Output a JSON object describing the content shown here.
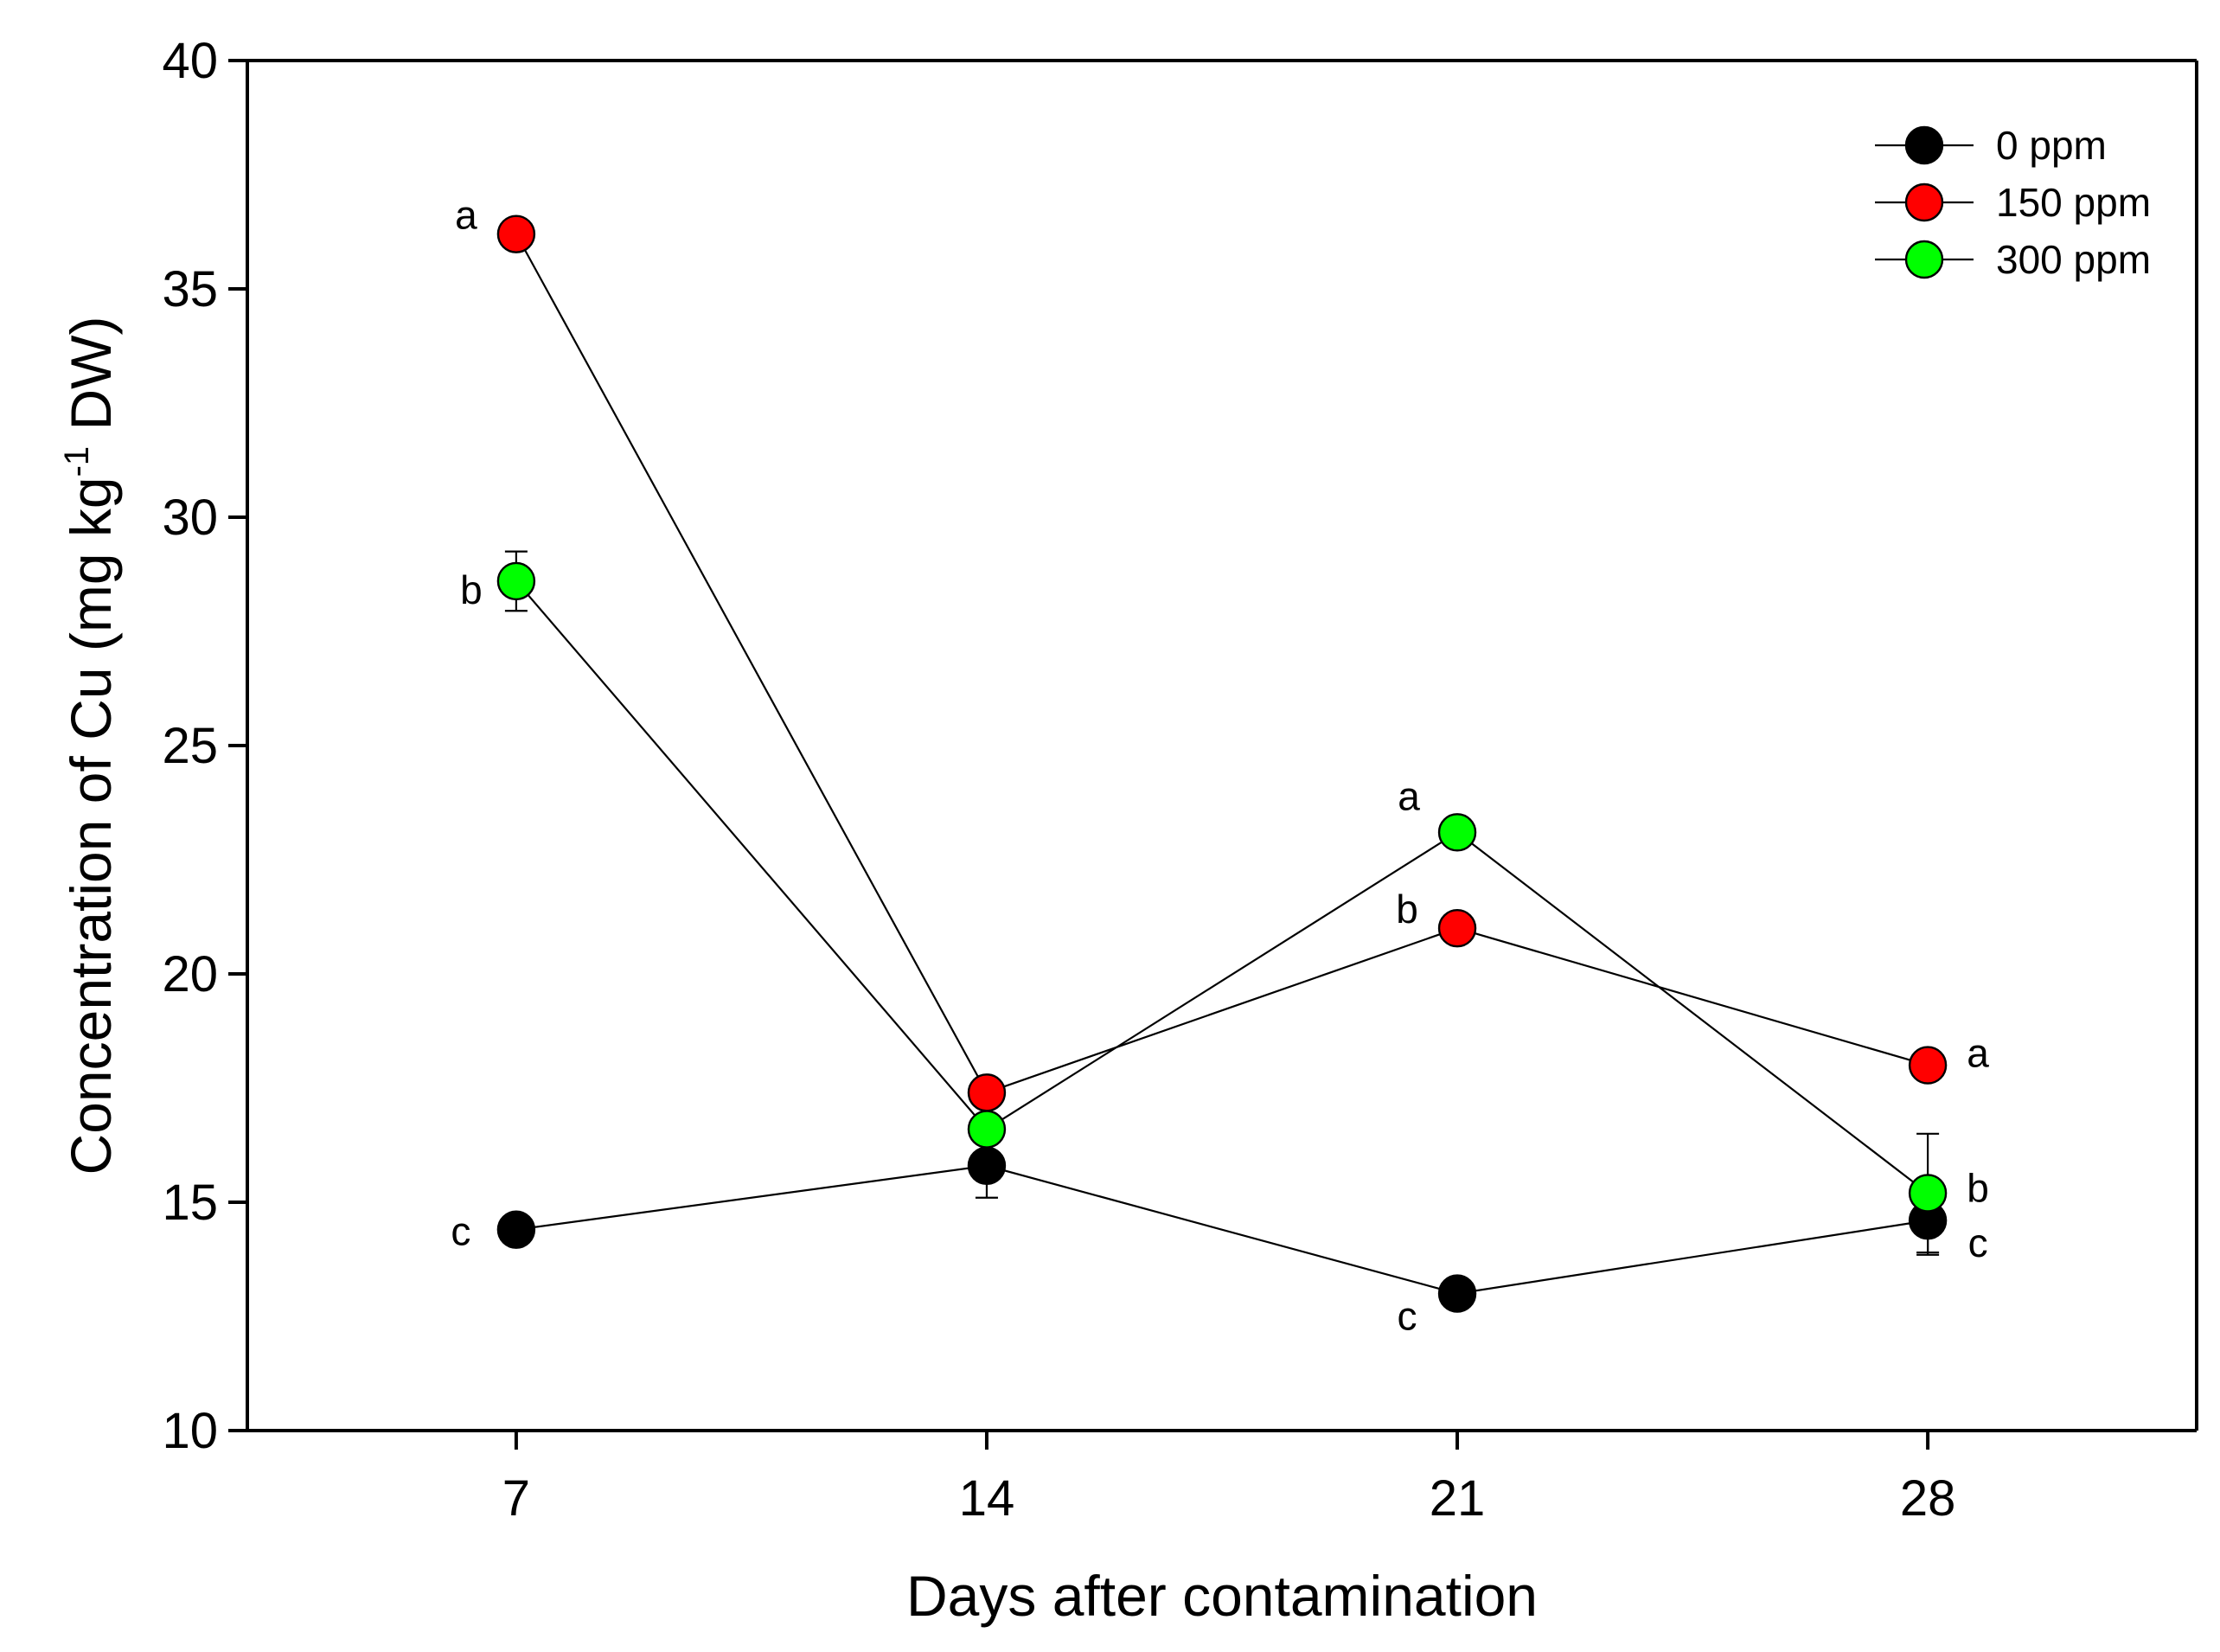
{
  "chart_data": {
    "type": "line",
    "title": "",
    "xlabel": "Days after contamination",
    "ylabel": {
      "main": "Concentration of Cu (mg kg",
      "superscript": "-1",
      "suffix": " DW)"
    },
    "x": [
      7,
      14,
      21,
      28
    ],
    "x_tick_labels": [
      "7",
      "14",
      "21",
      "28"
    ],
    "xlim": [
      3,
      32
    ],
    "ylim": [
      10,
      40
    ],
    "y_ticks": [
      10,
      15,
      20,
      25,
      30,
      35,
      40
    ],
    "y_tick_labels": [
      "10",
      "15",
      "20",
      "25",
      "30",
      "35",
      "40"
    ],
    "grid": false,
    "legend_position": "top-right",
    "series": [
      {
        "name": "0 ppm",
        "color": "#000000",
        "values": [
          14.4,
          15.8,
          13.0,
          14.6
        ],
        "errors": [
          0.15,
          0.7,
          0.2,
          0.75
        ],
        "significance": [
          "c",
          "",
          "c",
          "c"
        ]
      },
      {
        "name": "150 ppm",
        "color": "#ff0000",
        "values": [
          36.2,
          17.4,
          21.0,
          18.0
        ],
        "errors": [
          0.15,
          0.15,
          0.15,
          0.15
        ],
        "significance": [
          "a",
          "",
          "b",
          "a"
        ]
      },
      {
        "name": "300 ppm",
        "color": "#00ff00",
        "values": [
          28.6,
          16.6,
          23.1,
          15.2
        ],
        "errors": [
          0.65,
          0.15,
          0.2,
          1.3
        ],
        "significance": [
          "b",
          "",
          "a",
          "b"
        ]
      }
    ]
  }
}
